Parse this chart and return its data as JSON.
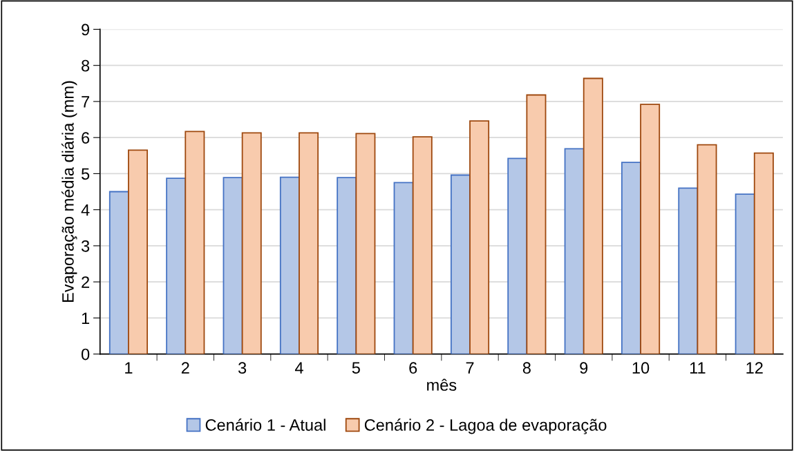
{
  "chart_data": {
    "type": "bar",
    "xlabel": "mês",
    "ylabel": "Evaporação média diária (mm)",
    "categories": [
      "1",
      "2",
      "3",
      "4",
      "5",
      "6",
      "7",
      "8",
      "9",
      "10",
      "11",
      "12"
    ],
    "series": [
      {
        "name": "Cenário 1 - Atual",
        "color": "#b4c7e7",
        "values": [
          4.5,
          4.87,
          4.89,
          4.9,
          4.89,
          4.75,
          4.96,
          5.42,
          5.69,
          5.31,
          4.6,
          4.43
        ]
      },
      {
        "name": "Cenário 2 - Lagoa de evaporação",
        "color": "#f8cbad",
        "values": [
          5.65,
          6.17,
          6.13,
          6.13,
          6.11,
          6.02,
          6.46,
          7.18,
          7.64,
          6.92,
          5.8,
          5.57
        ]
      }
    ],
    "ylim": [
      0,
      9
    ],
    "yticks": [
      0,
      1,
      2,
      3,
      4,
      5,
      6,
      7,
      8,
      9
    ],
    "grid": "y",
    "legend": "bottom"
  }
}
